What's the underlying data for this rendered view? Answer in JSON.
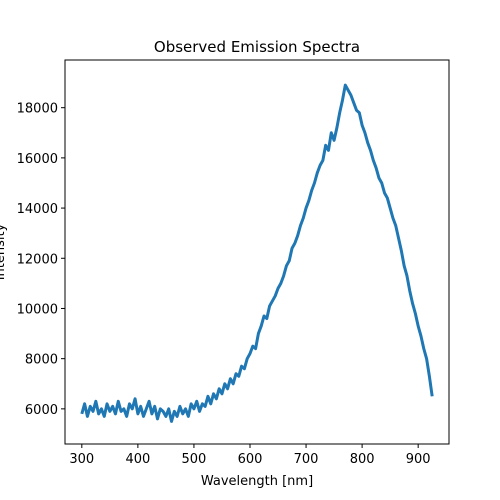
{
  "chart_data": {
    "type": "line",
    "title": "Observed Emission Spectra",
    "x_label": "Wavelength [nm]",
    "y_label": "Intensity",
    "x": [
      300,
      305,
      310,
      315,
      320,
      325,
      330,
      335,
      340,
      345,
      350,
      355,
      360,
      365,
      370,
      375,
      380,
      385,
      390,
      395,
      400,
      405,
      410,
      415,
      420,
      425,
      430,
      435,
      440,
      445,
      450,
      455,
      460,
      465,
      470,
      475,
      480,
      485,
      490,
      495,
      500,
      505,
      510,
      515,
      520,
      525,
      530,
      535,
      540,
      545,
      550,
      555,
      560,
      565,
      570,
      575,
      580,
      585,
      590,
      595,
      600,
      605,
      610,
      615,
      620,
      625,
      630,
      635,
      640,
      645,
      650,
      655,
      660,
      665,
      670,
      675,
      680,
      685,
      690,
      695,
      700,
      705,
      710,
      715,
      720,
      725,
      730,
      735,
      740,
      745,
      750,
      755,
      760,
      765,
      770,
      775,
      780,
      785,
      790,
      795,
      800,
      805,
      810,
      815,
      820,
      825,
      830,
      835,
      840,
      845,
      850,
      855,
      860,
      865,
      870,
      875,
      880,
      885,
      890,
      895,
      900,
      905,
      910,
      915,
      920,
      925
    ],
    "series": [
      {
        "color": "#1f77b4",
        "values": [
          5800,
          6200,
          5700,
          6100,
          5900,
          6300,
          5800,
          6000,
          5700,
          6200,
          5900,
          6100,
          5800,
          6300,
          5900,
          6000,
          5700,
          6200,
          6000,
          6400,
          5800,
          6100,
          5700,
          6000,
          6300,
          5800,
          6100,
          5600,
          6000,
          5900,
          5700,
          6000,
          5500,
          5900,
          5700,
          6100,
          5800,
          6000,
          5700,
          6200,
          6000,
          6300,
          5900,
          6200,
          6100,
          6500,
          6200,
          6600,
          6400,
          6800,
          6600,
          7000,
          6800,
          7200,
          7000,
          7400,
          7300,
          7700,
          7600,
          8000,
          8200,
          8500,
          8400,
          9000,
          9300,
          9700,
          9600,
          10100,
          10300,
          10500,
          10800,
          11000,
          11300,
          11700,
          11900,
          12400,
          12600,
          12900,
          13300,
          13600,
          14000,
          14300,
          14700,
          15000,
          15400,
          15700,
          15900,
          16500,
          16300,
          17000,
          16700,
          17200,
          17800,
          18300,
          18900,
          18700,
          18500,
          18200,
          17900,
          17800,
          17300,
          17000,
          16600,
          16300,
          15900,
          15600,
          15200,
          15000,
          14600,
          14400,
          14000,
          13600,
          13300,
          12800,
          12300,
          11700,
          11300,
          10700,
          10200,
          9800,
          9300,
          8900,
          8400,
          8000,
          7300,
          6500
        ]
      }
    ],
    "xlim": [
      270,
      955
    ],
    "ylim": [
      4600,
      19900
    ],
    "xticks": [
      300,
      400,
      500,
      600,
      700,
      800,
      900
    ],
    "yticks": [
      6000,
      8000,
      10000,
      12000,
      14000,
      16000,
      18000
    ]
  }
}
